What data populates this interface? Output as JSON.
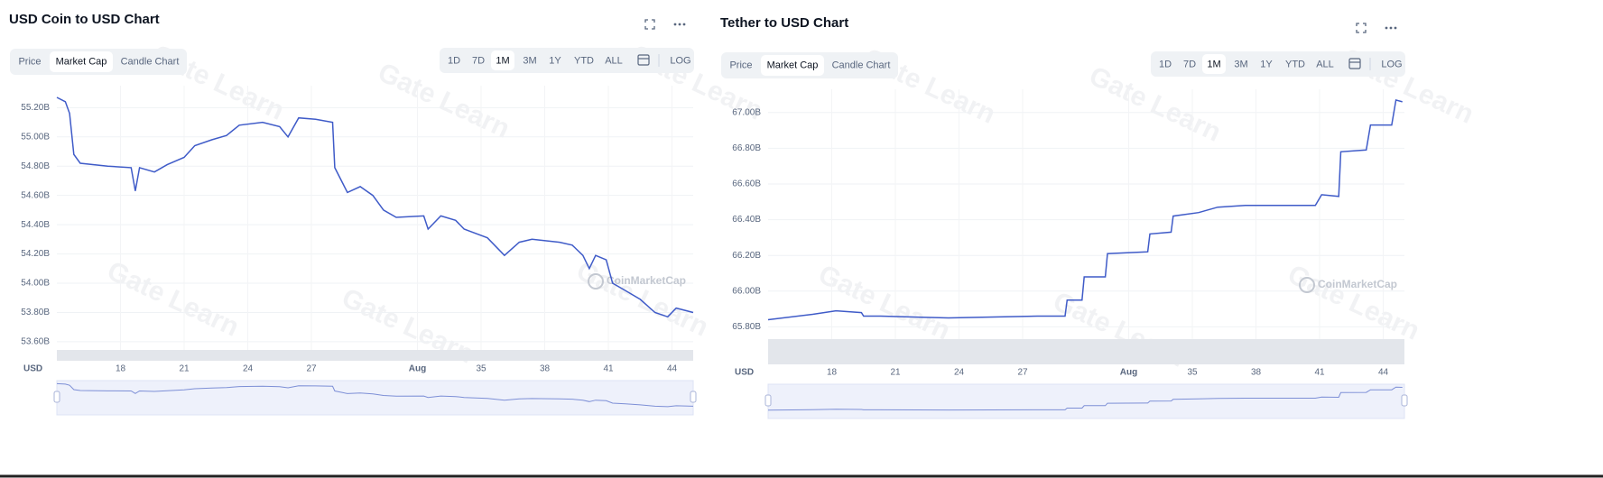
{
  "chart_data": [
    {
      "type": "line",
      "title": "USD Coin to USD Chart",
      "tabs": [
        "Price",
        "Market Cap",
        "Candle Chart"
      ],
      "selected_tab": 1,
      "ranges": [
        "1D",
        "7D",
        "1M",
        "3M",
        "1Y",
        "YTD",
        "ALL",
        "LOG"
      ],
      "selected_range": 2,
      "currency": "USD",
      "watermark": "CoinMarketCap",
      "background_watermark": "Gate Learn",
      "color": "#3f5bc8",
      "x": [
        15.0,
        15.4,
        15.6,
        15.8,
        16.1,
        17.4,
        18.5,
        18.7,
        18.9,
        19.6,
        20.2,
        21.0,
        21.5,
        22.3,
        23.0,
        23.6,
        24.7,
        25.5,
        25.9,
        26.4,
        27.2,
        28.0,
        28.1,
        28.7,
        29.3,
        29.9,
        30.4,
        31.0,
        32.3,
        32.5,
        33.1,
        33.8,
        34.2,
        35.3,
        36.1,
        36.8,
        37.4,
        38.7,
        39.3,
        39.8,
        40.1,
        40.4,
        40.9,
        41.2,
        41.8,
        42.5,
        43.2,
        43.8,
        44.2,
        45.0
      ],
      "values": [
        55.27,
        55.24,
        55.16,
        54.88,
        54.82,
        54.8,
        54.79,
        54.63,
        54.79,
        54.76,
        54.81,
        54.86,
        54.94,
        54.98,
        55.01,
        55.08,
        55.1,
        55.07,
        55.0,
        55.13,
        55.12,
        55.1,
        54.79,
        54.62,
        54.66,
        54.6,
        54.5,
        54.45,
        54.46,
        54.37,
        54.46,
        54.43,
        54.37,
        54.31,
        54.19,
        54.28,
        54.3,
        54.28,
        54.26,
        54.19,
        54.1,
        54.19,
        54.16,
        54.0,
        53.95,
        53.89,
        53.8,
        53.77,
        53.83,
        53.8
      ],
      "xlim": [
        15,
        45
      ],
      "xticks": [
        18,
        21,
        24,
        27,
        {
          "value": 32,
          "label": "Aug"
        },
        35,
        38,
        41,
        44
      ],
      "ylim": [
        53.47,
        55.35
      ],
      "yticks": [
        {
          "value": 53.6,
          "label": "53.60B"
        },
        {
          "value": 53.8,
          "label": "53.80B"
        },
        {
          "value": 54.0,
          "label": "54.00B"
        },
        {
          "value": 54.2,
          "label": "54.20B"
        },
        {
          "value": 54.4,
          "label": "54.40B"
        },
        {
          "value": 54.6,
          "label": "54.60B"
        },
        {
          "value": 54.8,
          "label": "54.80B"
        },
        {
          "value": 55.0,
          "label": "55.00B"
        },
        {
          "value": 55.2,
          "label": "55.20B"
        }
      ],
      "grid": true
    },
    {
      "type": "line",
      "title": "Tether to USD Chart",
      "tabs": [
        "Price",
        "Market Cap",
        "Candle Chart"
      ],
      "selected_tab": 1,
      "ranges": [
        "1D",
        "7D",
        "1M",
        "3M",
        "1Y",
        "YTD",
        "ALL",
        "LOG"
      ],
      "selected_range": 2,
      "currency": "USD",
      "watermark": "CoinMarketCap",
      "background_watermark": "Gate Learn",
      "color": "#3f5bc8",
      "x": [
        15.0,
        17.1,
        18.2,
        19.4,
        19.5,
        20.3,
        23.5,
        27.7,
        29.0,
        29.1,
        29.8,
        29.9,
        30.9,
        31.0,
        32.9,
        33.0,
        34.0,
        34.1,
        35.3,
        36.2,
        37.5,
        40.8,
        41.1,
        41.9,
        42.0,
        43.2,
        43.4,
        44.4,
        44.6,
        44.9
      ],
      "values": [
        65.84,
        65.87,
        65.89,
        65.88,
        65.86,
        65.86,
        65.85,
        65.86,
        65.86,
        65.95,
        65.95,
        66.08,
        66.08,
        66.21,
        66.22,
        66.32,
        66.33,
        66.42,
        66.44,
        66.47,
        66.48,
        66.48,
        66.54,
        66.53,
        66.78,
        66.79,
        66.93,
        66.93,
        67.07,
        67.06
      ],
      "xlim": [
        15,
        45
      ],
      "xticks": [
        18,
        21,
        24,
        27,
        {
          "value": 32,
          "label": "Aug"
        },
        35,
        38,
        41,
        44
      ],
      "ylim": [
        65.59,
        67.13
      ],
      "yticks": [
        {
          "value": 65.8,
          "label": "65.80B"
        },
        {
          "value": 66.0,
          "label": "66.00B"
        },
        {
          "value": 66.2,
          "label": "66.20B"
        },
        {
          "value": 66.4,
          "label": "66.40B"
        },
        {
          "value": 66.6,
          "label": "66.60B"
        },
        {
          "value": 66.8,
          "label": "66.80B"
        },
        {
          "value": 67.0,
          "label": "67.00B"
        }
      ],
      "grid": true
    }
  ]
}
